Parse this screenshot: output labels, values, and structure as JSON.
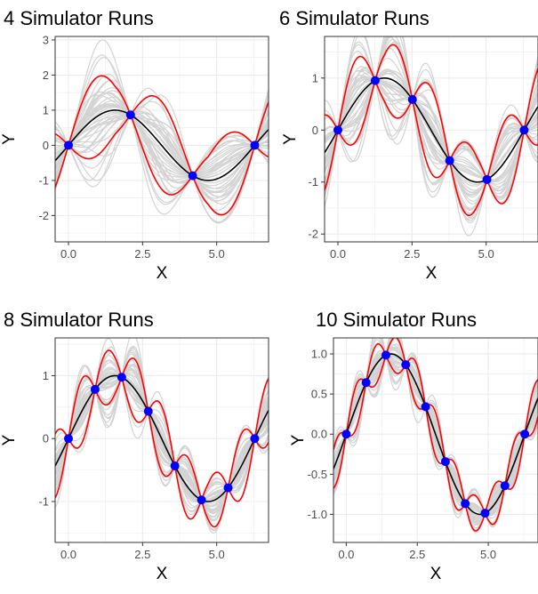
{
  "chart_data": [
    {
      "type": "line",
      "title": "4 Simulator Runs",
      "xlabel": "X",
      "ylabel": "Y",
      "xlim": [
        -0.45,
        6.75
      ],
      "ylim": [
        -2.75,
        3.1
      ],
      "xticks": [
        0.0,
        2.5,
        5.0
      ],
      "xtick_labels": [
        "0.0",
        "2.5",
        "5.0"
      ],
      "yticks": [
        -2,
        -1,
        0,
        1,
        2,
        3
      ],
      "ytick_labels": [
        "-2",
        "-1",
        "0",
        "1",
        "2",
        "3"
      ],
      "grid": true,
      "legend": "none",
      "points": {
        "x": [
          0,
          2.094,
          4.189,
          6.283
        ],
        "y": [
          0,
          0.866,
          -0.866,
          0
        ]
      },
      "true_function": "sin(x)",
      "red_bound_amplitude": 0.96,
      "gray_spread": 1.9,
      "colors": {
        "true": "#000000",
        "bounds": "#ff0000",
        "samples": "#d3d3d3",
        "points": "#0000ff"
      }
    },
    {
      "type": "line",
      "title": "6 Simulator Runs",
      "xlabel": "X",
      "ylabel": "Y",
      "xlim": [
        -0.45,
        6.75
      ],
      "ylim": [
        -2.15,
        1.8
      ],
      "xticks": [
        0.0,
        2.5,
        5.0
      ],
      "xtick_labels": [
        "0.0",
        "2.5",
        "5.0"
      ],
      "yticks": [
        -2,
        -1,
        0,
        1
      ],
      "ytick_labels": [
        "-2",
        "-1",
        "0",
        "1"
      ],
      "grid": true,
      "legend": "none",
      "points": {
        "x": [
          0,
          1.257,
          2.513,
          3.77,
          5.027,
          6.283
        ],
        "y": [
          0,
          0.951,
          0.588,
          -0.588,
          -0.951,
          0
        ]
      },
      "true_function": "sin(x)",
      "red_bound_amplitude": 0.63,
      "gray_spread": 1.25,
      "colors": {
        "true": "#000000",
        "bounds": "#ff0000",
        "samples": "#d3d3d3",
        "points": "#0000ff"
      }
    },
    {
      "type": "line",
      "title": "8 Simulator Runs",
      "xlabel": "X",
      "ylabel": "Y",
      "xlim": [
        -0.45,
        6.75
      ],
      "ylim": [
        -1.65,
        1.6
      ],
      "xticks": [
        0.0,
        2.5,
        5.0
      ],
      "xtick_labels": [
        "0.0",
        "2.5",
        "5.0"
      ],
      "yticks": [
        -1,
        0,
        1
      ],
      "ytick_labels": [
        "-1",
        "0",
        "1"
      ],
      "grid": true,
      "legend": "none",
      "points": {
        "x": [
          0,
          0.898,
          1.795,
          2.693,
          3.59,
          4.488,
          5.386,
          6.283
        ],
        "y": [
          0,
          0.782,
          0.975,
          0.434,
          -0.434,
          -0.975,
          -0.782,
          0
        ]
      },
      "true_function": "sin(x)",
      "red_bound_amplitude": 0.4,
      "gray_spread": 0.75,
      "colors": {
        "true": "#000000",
        "bounds": "#ff0000",
        "samples": "#d3d3d3",
        "points": "#0000ff"
      }
    },
    {
      "type": "line",
      "title": "10 Simulator Runs",
      "xlabel": "X",
      "ylabel": "Y",
      "xlim": [
        -0.45,
        6.75
      ],
      "ylim": [
        -1.35,
        1.2
      ],
      "xticks": [
        0.0,
        2.5,
        5.0
      ],
      "xtick_labels": [
        "0.0",
        "2.5",
        "5.0"
      ],
      "yticks": [
        -1.0,
        -0.5,
        0.0,
        0.5,
        1.0
      ],
      "ytick_labels": [
        "-1.0",
        "-0.5",
        "0.0",
        "0.5",
        "1.0"
      ],
      "grid": true,
      "legend": "none",
      "points": {
        "x": [
          0,
          0.698,
          1.396,
          2.094,
          2.793,
          3.491,
          4.189,
          4.887,
          5.585,
          6.283
        ],
        "y": [
          0,
          0.643,
          0.985,
          0.866,
          0.342,
          -0.342,
          -0.866,
          -0.985,
          -0.643,
          0
        ]
      },
      "true_function": "sin(x)",
      "red_bound_amplitude": 0.21,
      "gray_spread": 0.4,
      "colors": {
        "true": "#000000",
        "bounds": "#ff0000",
        "samples": "#d3d3d3",
        "points": "#0000ff"
      }
    }
  ]
}
